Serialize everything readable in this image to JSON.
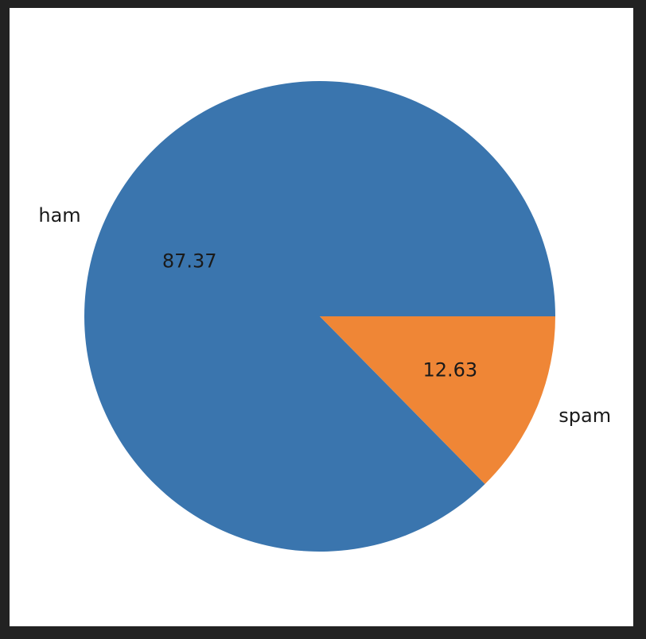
{
  "chart_data": {
    "type": "pie",
    "title": "",
    "slices": [
      {
        "label": "ham",
        "value": 87.37,
        "value_label": "87.37",
        "color": "#3a75ae"
      },
      {
        "label": "spam",
        "value": 12.63,
        "value_label": "12.63",
        "color": "#ef8636"
      }
    ],
    "start_angle_deg": 0,
    "direction": "counterclockwise",
    "legend": "none"
  }
}
